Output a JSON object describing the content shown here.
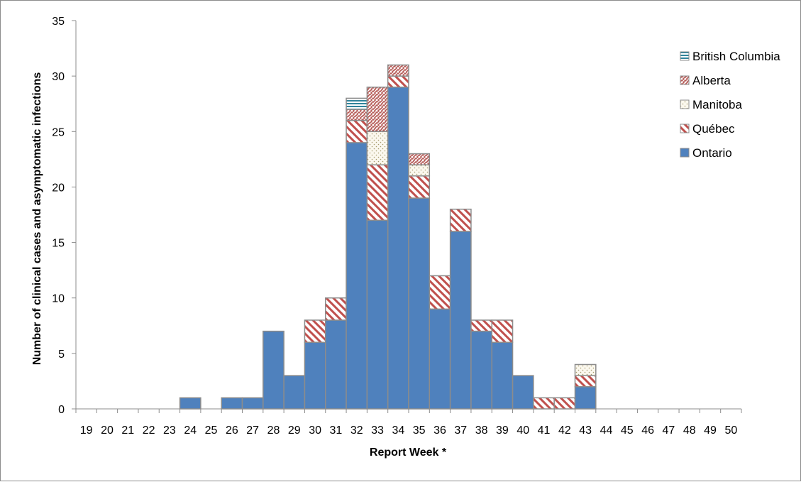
{
  "chart_data": {
    "type": "bar",
    "stacked": true,
    "xlabel": "Report Week *",
    "ylabel": "Number of clinical cases and asymptomatic infections",
    "ylim": [
      0,
      35
    ],
    "yticks": [
      0,
      5,
      10,
      15,
      20,
      25,
      30,
      35
    ],
    "grid": false,
    "legend_position": "top-right",
    "categories": [
      "19",
      "20",
      "21",
      "22",
      "23",
      "24",
      "25",
      "26",
      "27",
      "28",
      "29",
      "30",
      "31",
      "32",
      "33",
      "34",
      "35",
      "36",
      "37",
      "38",
      "39",
      "40",
      "41",
      "42",
      "43",
      "44",
      "45",
      "46",
      "47",
      "48",
      "49",
      "50"
    ],
    "series": [
      {
        "name": "Ontario",
        "color": "#4f81bd",
        "pattern": "solid",
        "values": [
          0,
          0,
          0,
          0,
          0,
          1,
          0,
          1,
          1,
          7,
          3,
          6,
          8,
          24,
          17,
          29,
          19,
          9,
          16,
          7,
          6,
          3,
          0,
          0,
          2,
          0,
          0,
          0,
          0,
          0,
          0,
          0
        ]
      },
      {
        "name": "Québec",
        "color": "#c0504d",
        "pattern": "wide-diagonal",
        "values": [
          0,
          0,
          0,
          0,
          0,
          0,
          0,
          0,
          0,
          0,
          0,
          2,
          2,
          2,
          5,
          1,
          2,
          3,
          2,
          1,
          2,
          0,
          1,
          1,
          1,
          0,
          0,
          0,
          0,
          0,
          0,
          0
        ]
      },
      {
        "name": "Manitoba",
        "color": "#c4bd97",
        "pattern": "dotted",
        "values": [
          0,
          0,
          0,
          0,
          0,
          0,
          0,
          0,
          0,
          0,
          0,
          0,
          0,
          0,
          3,
          0,
          1,
          0,
          0,
          0,
          0,
          0,
          0,
          0,
          1,
          0,
          0,
          0,
          0,
          0,
          0,
          0
        ]
      },
      {
        "name": "Alberta",
        "color": "#c0504d",
        "pattern": "dense-diagonal",
        "values": [
          0,
          0,
          0,
          0,
          0,
          0,
          0,
          0,
          0,
          0,
          0,
          0,
          0,
          1,
          4,
          1,
          1,
          0,
          0,
          0,
          0,
          0,
          0,
          0,
          0,
          0,
          0,
          0,
          0,
          0,
          0,
          0
        ]
      },
      {
        "name": "British Columbia",
        "color": "#31849b",
        "pattern": "horizontal-stripes",
        "values": [
          0,
          0,
          0,
          0,
          0,
          0,
          0,
          0,
          0,
          0,
          0,
          0,
          0,
          1,
          0,
          0,
          0,
          0,
          0,
          0,
          0,
          0,
          0,
          0,
          0,
          0,
          0,
          0,
          0,
          0,
          0,
          0
        ]
      }
    ],
    "legend_order": [
      "British Columbia",
      "Alberta",
      "Manitoba",
      "Québec",
      "Ontario"
    ]
  }
}
